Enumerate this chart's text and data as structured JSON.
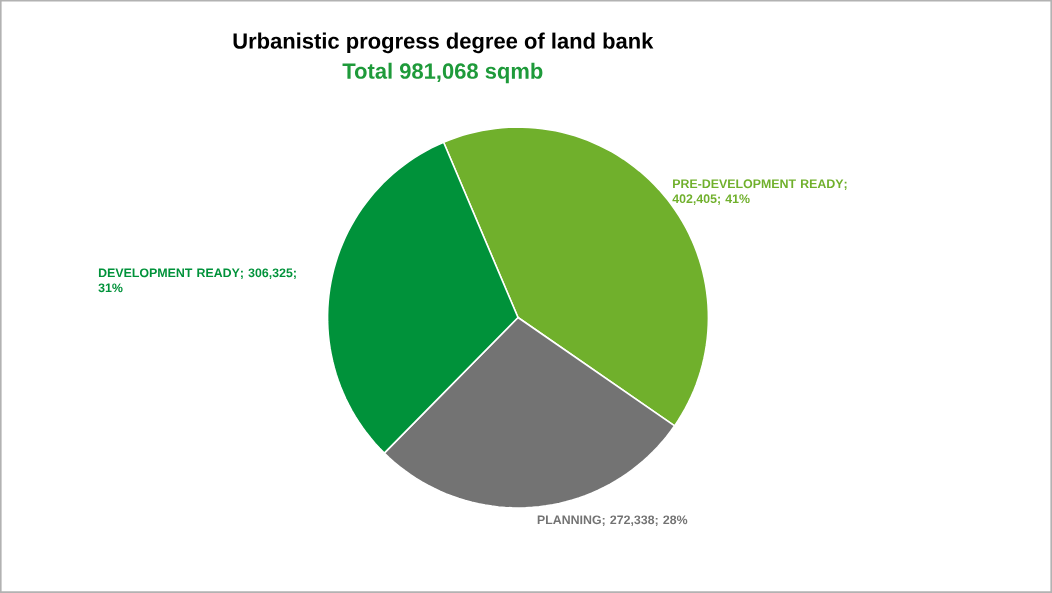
{
  "chart_data": {
    "type": "pie",
    "title": "Urbanistic progress degree of land bank",
    "subtitle": "Total 981,068 sqmb",
    "categories": [
      "PRE-DEVELOPMENT READY",
      "PLANNING",
      "DEVELOPMENT READY"
    ],
    "values": [
      402405,
      272338,
      306325
    ],
    "value_labels": [
      "; 402,405; 41%",
      "; 272,338; 28%",
      "; 306,325; 31%"
    ],
    "colors": [
      "#70b02c",
      "#737373",
      "#00923a"
    ]
  }
}
